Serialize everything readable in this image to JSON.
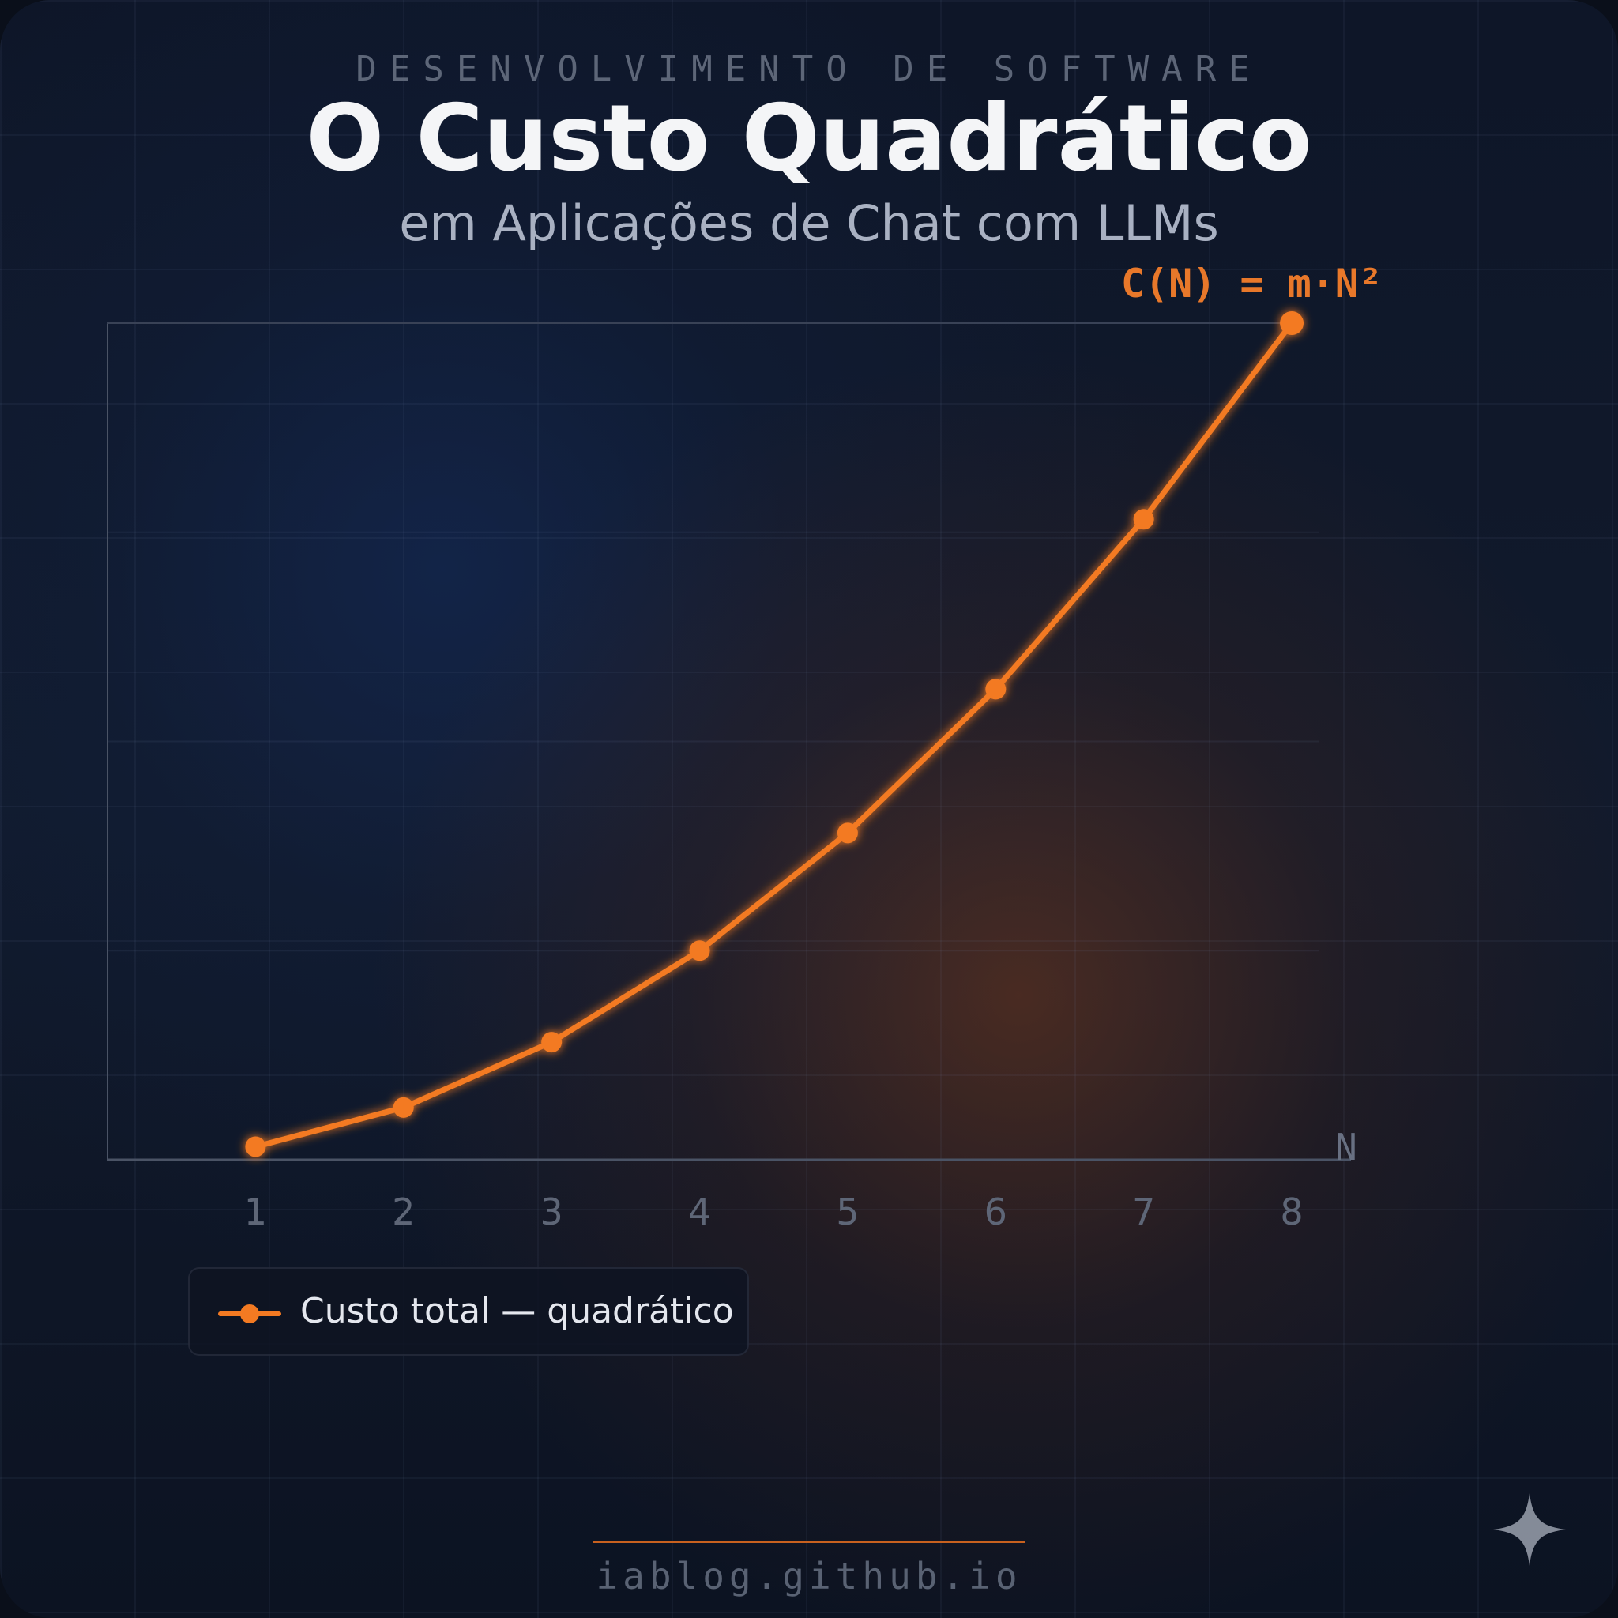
{
  "header": {
    "kicker": "DESENVOLVIMENTO DE SOFTWARE",
    "title": "O Custo Quadrático",
    "subtitle": "em Aplicações de Chat com LLMs"
  },
  "chart_data": {
    "type": "line",
    "title": "O Custo Quadrático",
    "subtitle": "em Aplicações de Chat com LLMs",
    "xlabel": "N",
    "ylabel": "",
    "x": [
      1,
      2,
      3,
      4,
      5,
      6,
      7,
      8
    ],
    "xticks": [
      "1",
      "2",
      "3",
      "4",
      "5",
      "6",
      "7",
      "8"
    ],
    "series": [
      {
        "name": "Custo total — quadrático",
        "values": [
          1,
          4,
          9,
          16,
          25,
          36,
          49,
          64
        ],
        "color": "#f37a22"
      }
    ],
    "annotation": "C(N) = m·N²",
    "xlim": [
      0,
      8.4
    ],
    "ylim": [
      0,
      64
    ],
    "grid": true,
    "legend": "bottom-left"
  },
  "legend": {
    "label": "Custo total — quadrático"
  },
  "footer": {
    "site": "iablog.github.io"
  },
  "colors": {
    "accent": "#f37a22",
    "background": "#0e1628"
  },
  "icons": {
    "corner": "sparkle-icon"
  }
}
